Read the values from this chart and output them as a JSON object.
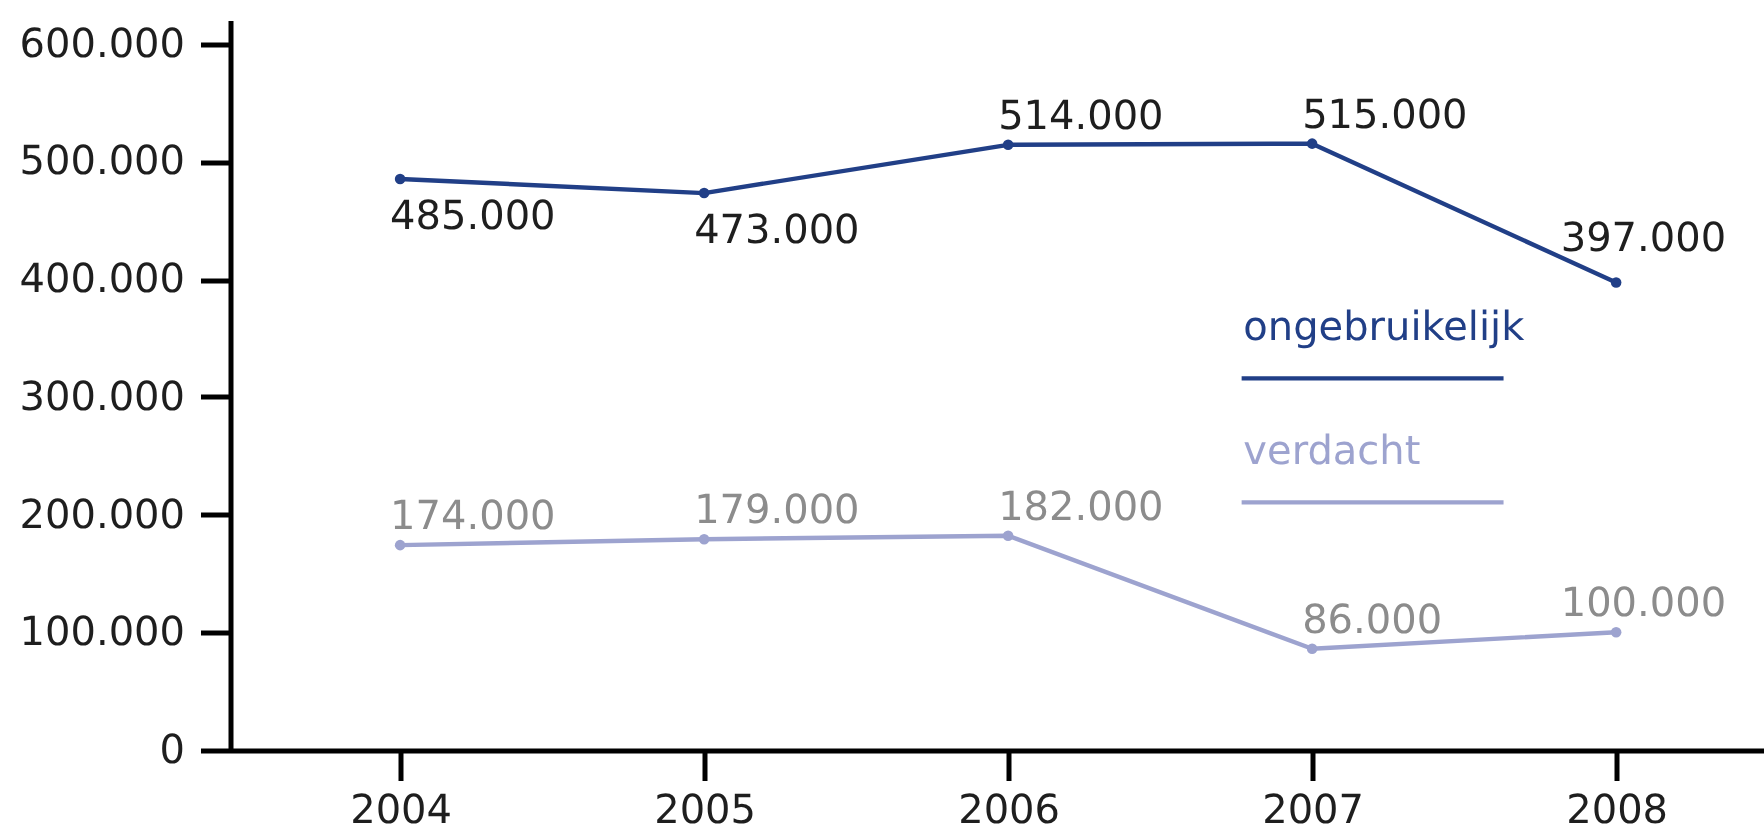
{
  "chart_data": {
    "type": "line",
    "categories": [
      "2004",
      "2005",
      "2006",
      "2007",
      "2008"
    ],
    "series": [
      {
        "name": "ongebruikelijk",
        "color": "#213f87",
        "values": [
          485000,
          473000,
          514000,
          515000,
          397000
        ],
        "value_labels": [
          "485.000",
          "473.000",
          "514.000",
          "515.000",
          "397.000"
        ]
      },
      {
        "name": "verdacht",
        "color": "#9da3cf",
        "values": [
          174000,
          179000,
          182000,
          86000,
          100000
        ],
        "value_labels": [
          "174.000",
          "179.000",
          "182.000",
          "86.000",
          "100.000"
        ]
      }
    ],
    "ylim": [
      0,
      620000
    ],
    "yticks": [
      0,
      {
        "value": 100000,
        "label": "100.000"
      },
      {
        "value": 200000,
        "label": "200.000"
      },
      {
        "value": 300000,
        "label": "300.000"
      },
      {
        "value": 400000,
        "label": "400.000"
      },
      {
        "value": 500000,
        "label": "500.000"
      },
      {
        "value": 600000,
        "label": "600.000"
      }
    ],
    "legend": "right",
    "marker": "circle",
    "line_style": "solid"
  }
}
